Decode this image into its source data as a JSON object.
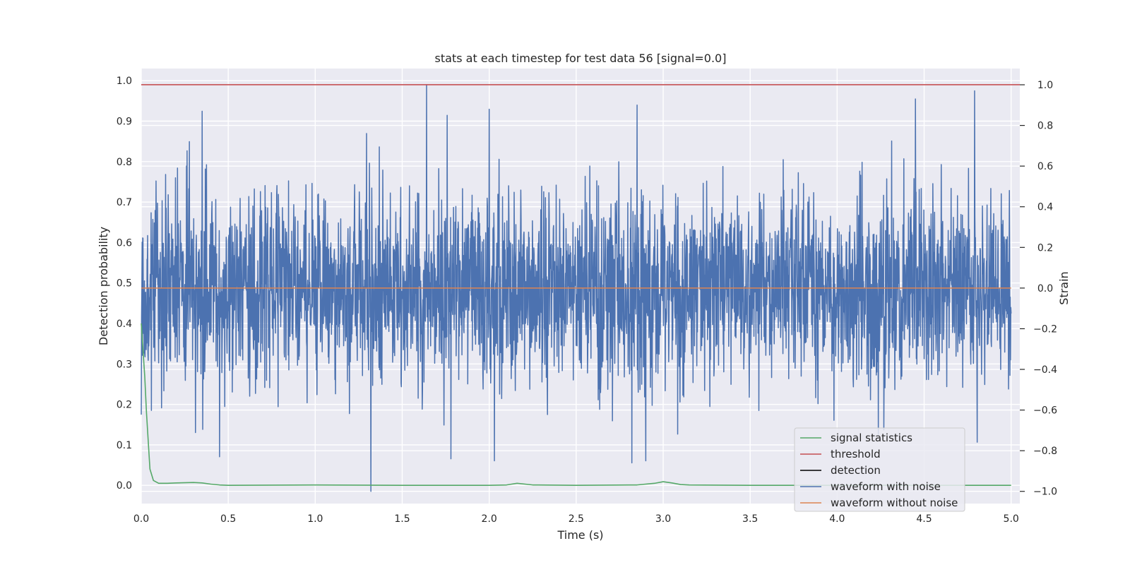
{
  "chart_data": {
    "type": "line",
    "title": "stats at each timestep for test data 56 [signal=0.0]",
    "xlabel": "Time (s)",
    "ylabel": "Detection probability",
    "y2label": "Strain",
    "xlim": [
      0.0,
      5.05
    ],
    "ylim": [
      -0.045,
      1.03
    ],
    "y2lim": [
      -1.06,
      1.08
    ],
    "xticks": [
      "0.0",
      "0.5",
      "1.0",
      "1.5",
      "2.0",
      "2.5",
      "3.0",
      "3.5",
      "4.0",
      "4.5",
      "5.0"
    ],
    "xtick_values": [
      0,
      0.5,
      1,
      1.5,
      2,
      2.5,
      3,
      3.5,
      4,
      4.5,
      5
    ],
    "yticks": [
      "0.0",
      "0.1",
      "0.2",
      "0.3",
      "0.4",
      "0.5",
      "0.6",
      "0.7",
      "0.8",
      "0.9",
      "1.0"
    ],
    "ytick_values": [
      0,
      0.1,
      0.2,
      0.3,
      0.4,
      0.5,
      0.6,
      0.7,
      0.8,
      0.9,
      1.0
    ],
    "y2ticks": [
      "−1.0",
      "−0.8",
      "−0.6",
      "−0.4",
      "−0.2",
      "0.0",
      "0.2",
      "0.4",
      "0.6",
      "0.8",
      "1.0"
    ],
    "y2tick_values": [
      -1,
      -0.8,
      -0.6,
      -0.4,
      -0.2,
      0,
      0.2,
      0.4,
      0.6,
      0.8,
      1
    ],
    "grid": true,
    "legend_position": "lower-right",
    "series": [
      {
        "name": "signal statistics",
        "axis": "left",
        "color": "#55a868",
        "x": [
          0.0,
          0.02,
          0.03,
          0.04,
          0.05,
          0.07,
          0.1,
          0.15,
          0.2,
          0.3,
          0.35,
          0.4,
          0.45,
          0.5,
          1.0,
          1.5,
          2.0,
          2.1,
          2.16,
          2.25,
          2.5,
          2.85,
          2.95,
          3.0,
          3.05,
          3.1,
          3.15,
          3.5,
          4.0,
          4.5,
          5.0
        ],
        "y": [
          0.4,
          0.27,
          0.18,
          0.11,
          0.04,
          0.012,
          0.005,
          0.005,
          0.006,
          0.007,
          0.006,
          0.003,
          0.001,
          0.0,
          0.001,
          0.0,
          0.0,
          0.001,
          0.005,
          0.001,
          0.0,
          0.001,
          0.005,
          0.009,
          0.006,
          0.002,
          0.001,
          0.0,
          0.0,
          0.0,
          0.0
        ]
      },
      {
        "name": "threshold",
        "axis": "left",
        "color": "#c44e52",
        "x": [
          0.0,
          5.05
        ],
        "y": [
          0.99,
          0.99
        ]
      },
      {
        "name": "detection",
        "axis": "left",
        "color": "#000000",
        "x": [],
        "y": []
      },
      {
        "name": "waveform with noise",
        "axis": "right",
        "color": "#4c72b0",
        "x_range": [
          0.0,
          5.0
        ],
        "typical_range": [
          -0.5,
          0.5
        ],
        "peaks": [
          {
            "x": 1.64,
            "y": 1.0
          },
          {
            "x": 4.79,
            "y": 0.97
          },
          {
            "x": 4.45,
            "y": 0.93
          },
          {
            "x": 2.85,
            "y": 0.9
          },
          {
            "x": 2.0,
            "y": 0.88
          },
          {
            "x": 0.35,
            "y": 0.87
          },
          {
            "x": 1.32,
            "y": -1.0
          },
          {
            "x": 0.45,
            "y": -0.83
          },
          {
            "x": 1.78,
            "y": -0.84
          },
          {
            "x": 2.03,
            "y": -0.85
          },
          {
            "x": 2.82,
            "y": -0.86
          },
          {
            "x": 2.9,
            "y": -0.85
          }
        ]
      },
      {
        "name": "waveform without noise",
        "axis": "right",
        "color": "#dd8452",
        "x": [
          0.0,
          5.0
        ],
        "y": [
          0.0,
          0.0
        ]
      }
    ]
  }
}
